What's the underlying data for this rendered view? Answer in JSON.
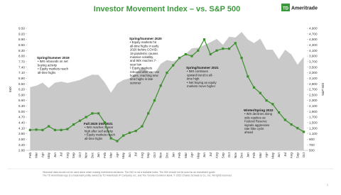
{
  "chart_data": {
    "type": "line",
    "title": "Investor Movement Index – vs. S&P 500",
    "logo": {
      "mark": "TD",
      "text": "Ameritrade"
    },
    "y_label": "IMX",
    "y2_label": "S&P 500",
    "categories": [
      "Feb",
      "Mar",
      "Apr",
      "May",
      "Jun",
      "Jul",
      "Aug",
      "Sep",
      "Oct",
      "Nov",
      "Dec",
      "Jan",
      "Feb",
      "Mar",
      "Apr",
      "May",
      "Jun",
      "Jul",
      "Aug",
      "Sep",
      "Oct",
      "Nov",
      "Dec",
      "Jan",
      "Feb",
      "Mar",
      "Apr",
      "May",
      "Jun",
      "Jul",
      "Aug",
      "Sep",
      "Oct",
      "Nov",
      "Dec",
      "Jan",
      "Feb",
      "Mar",
      "Apr",
      "May",
      "Jun",
      "Jul",
      "Aug",
      "Sep",
      "Oct"
    ],
    "series": [
      {
        "name": "S&P 500",
        "type": "area",
        "axis": "y2",
        "color": "#c9c9c9",
        "values": [
          2780,
          2830,
          2940,
          2750,
          2940,
          2980,
          2930,
          2980,
          3040,
          3140,
          3230,
          3220,
          2950,
          2580,
          2910,
          3040,
          3100,
          3270,
          3500,
          3360,
          3270,
          3620,
          3760,
          3710,
          3810,
          3970,
          4180,
          4200,
          4300,
          4400,
          4520,
          4310,
          4600,
          4570,
          4770,
          4500,
          4370,
          4530,
          4130,
          4130,
          3790,
          4130,
          3960,
          3590,
          3870
        ]
      },
      {
        "name": "IMX",
        "type": "line",
        "color": "#3d8f2e",
        "values": [
          4.0,
          4.02,
          4.0,
          4.2,
          4.0,
          4.0,
          4.05,
          4.3,
          4.5,
          4.7,
          4.9,
          4.9,
          4.4,
          3.55,
          3.4,
          3.7,
          3.85,
          3.95,
          4.2,
          4.9,
          5.6,
          6.4,
          7.1,
          7.5,
          7.9,
          8.1,
          8.0,
          8.3,
          8.9,
          8.1,
          8.3,
          8.4,
          8.4,
          8.7,
          7.9,
          6.9,
          6.3,
          6.0,
          5.6,
          5.4,
          4.95,
          4.55,
          4.3,
          4.1,
          3.9
        ]
      }
    ],
    "ylim": [
      2.9,
      9.5
    ],
    "yticks": [
      {
        "value": 9.5,
        "label": "9.50"
      },
      {
        "value": 9.2,
        "label": "9.20"
      },
      {
        "value": 8.9,
        "label": "8.90"
      },
      {
        "value": 8.6,
        "label": "8.60"
      },
      {
        "value": 8.3,
        "label": "8.30"
      },
      {
        "value": 8.0,
        "label": "8.00"
      },
      {
        "value": 7.7,
        "label": "7.70"
      },
      {
        "value": 7.4,
        "label": "7.40"
      },
      {
        "value": 7.1,
        "label": "7.10"
      },
      {
        "value": 6.8,
        "label": "6.80"
      },
      {
        "value": 6.5,
        "label": "6.50"
      },
      {
        "value": 6.2,
        "label": "6.20"
      },
      {
        "value": 5.9,
        "label": "5.90"
      },
      {
        "value": 5.6,
        "label": "5.60"
      },
      {
        "value": 5.3,
        "label": "5.30"
      },
      {
        "value": 5.0,
        "label": "5.00"
      },
      {
        "value": 4.7,
        "label": "4.70"
      },
      {
        "value": 4.4,
        "label": "4.40"
      },
      {
        "value": 4.1,
        "label": "4.10"
      },
      {
        "value": 3.8,
        "label": "3.80"
      },
      {
        "value": 3.5,
        "label": "3.50"
      },
      {
        "value": 3.2,
        "label": "3.20"
      },
      {
        "value": 2.9,
        "label": "2.90"
      }
    ],
    "y2lim": [
      500,
      4900
    ],
    "y2ticks": [
      {
        "value": 4900,
        "label": "4,900"
      },
      {
        "value": 4700,
        "label": "4,700"
      },
      {
        "value": 4500,
        "label": "4,500"
      },
      {
        "value": 4300,
        "label": "4,300"
      },
      {
        "value": 4100,
        "label": "4,100"
      },
      {
        "value": 3900,
        "label": "3,900"
      },
      {
        "value": 3700,
        "label": "3,700"
      },
      {
        "value": 3500,
        "label": "3,500"
      },
      {
        "value": 3300,
        "label": "3,300"
      },
      {
        "value": 3100,
        "label": "3,100"
      },
      {
        "value": 2900,
        "label": "2,900"
      },
      {
        "value": 2700,
        "label": "2,700"
      },
      {
        "value": 2500,
        "label": "2,500"
      },
      {
        "value": 2300,
        "label": "2,300"
      },
      {
        "value": 2100,
        "label": "2,100"
      },
      {
        "value": 1900,
        "label": "1,900"
      },
      {
        "value": 1700,
        "label": "1,700"
      },
      {
        "value": 1500,
        "label": "1,500"
      },
      {
        "value": 1300,
        "label": "1,300"
      },
      {
        "value": 1100,
        "label": "1,100"
      },
      900,
      700,
      500
    ],
    "annotations": [
      {
        "title": "Spring/Summer 2019",
        "lines": [
          "• IMX rebounds on net",
          "buying activity",
          "• Equity markets reach",
          "all-time highs"
        ]
      },
      {
        "title": "Fall 2020 into 2021",
        "lines": [
          "• IMX reaches 3-year",
          "high after sell activity",
          "• Equity markets reach",
          "all-time highs"
        ]
      },
      {
        "title": "Spring/Summer 2020",
        "lines": [
          "• Equity markets hit",
          "all-time highs in early",
          "2020 before COVID-",
          "19 pandemic causes",
          "massive volatility,",
          "and IMX reaches 7-",
          "year low",
          "• Equity markets",
          "rebound after vaccine",
          "hopes, reaching new",
          "time highs in late",
          "summer"
        ]
      },
      {
        "title": "Spring/Summer 2021",
        "lines": [
          "• IMX continues",
          "upward trend to all-",
          "time high",
          "• Net buying as equity",
          "markets move higher"
        ]
      },
      {
        "title": "Winter/Spring 2022",
        "lines": [
          "• IMX declines along",
          "side equities as",
          "Federal Reserve",
          "signals aggressive",
          "rate hike cycle",
          "ahead"
        ]
      }
    ],
    "footnote": [
      "Historical data should not be used alone when making investment decisions. The IMX is not a tradable index. The IMX should not be used as an investment guide.",
      "The TD Ameritrade logo is a trademark jointly owned by TD Ameritrade IP Company, Inc. and The Toronto-Dominion Bank. © 2022 Charles Schwab & Co., Inc. All rights reserved."
    ],
    "page_number": "1"
  }
}
